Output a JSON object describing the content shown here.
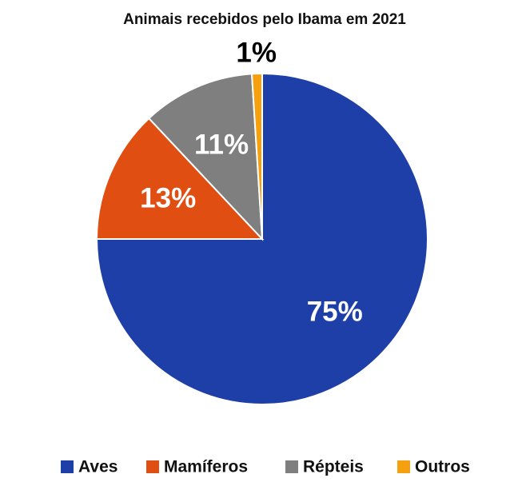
{
  "chart_data": {
    "type": "pie",
    "title": "Animais recebidos pelo Ibama em 2021",
    "categories": [
      "Aves",
      "Mamíferos",
      "Répteis",
      "Outros"
    ],
    "values": [
      75,
      13,
      11,
      1
    ],
    "labels": [
      "75%",
      "13%",
      "11%",
      "1%"
    ],
    "colors": [
      "#1f3fa8",
      "#e04e12",
      "#7f7f7f",
      "#f5a00f"
    ],
    "legend_placement": "bottom"
  }
}
